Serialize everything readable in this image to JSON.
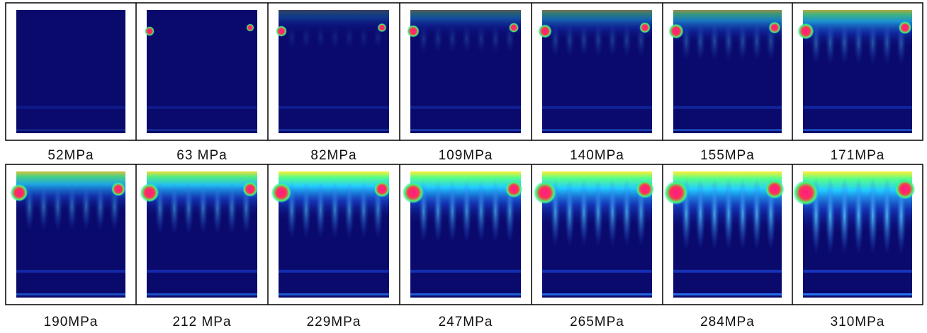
{
  "rows": [
    [
      "52MPa",
      "63 MPa",
      "82MPa",
      "109MPa",
      "140MPa",
      "155MPa",
      "171MPa"
    ],
    [
      "190MPa",
      "212 MPa",
      "229MPa",
      "247MPa",
      "265MPa",
      "284MPa",
      "310MPa"
    ]
  ]
}
